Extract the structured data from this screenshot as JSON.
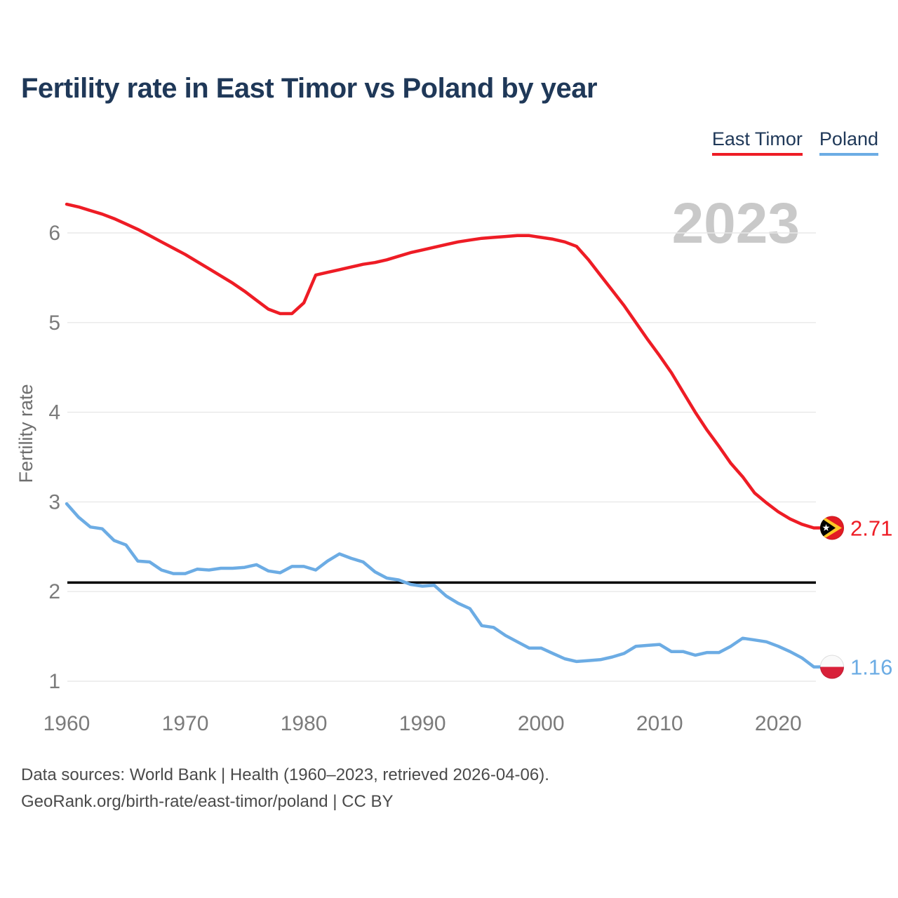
{
  "page": {
    "title": "Fertility rate in East Timor vs Poland by year",
    "footer_line1": "Data sources: World Bank | Health (1960–2023, retrieved 2026-04-06).",
    "footer_line2": "GeoRank.org/birth-rate/east-timor/poland | CC BY"
  },
  "colors": {
    "title_text": "#1F3858",
    "watermark": "#C9C9C9",
    "gridline": "#E8E8E8",
    "tick_text": "#7B7B7B",
    "axis_title": "#6E6E6E",
    "footer_text": "#4A4A4A",
    "reference_line": "#000000",
    "east_timor": "#EE1C25",
    "poland": "#6CACE4"
  },
  "chart_data": {
    "type": "line",
    "title": "Fertility rate in East Timor vs Poland by year",
    "xlabel": "",
    "ylabel": "Fertility rate",
    "watermark": "2023",
    "x_range": [
      1960,
      2023
    ],
    "x_step": 1,
    "x_ticks": [
      1960,
      1970,
      1980,
      1990,
      2000,
      2010,
      2020
    ],
    "y_ticks": [
      1,
      2,
      3,
      4,
      5,
      6
    ],
    "grid": "horizontal-only",
    "legend_position": "top-right",
    "reference_line": {
      "value": 2.1,
      "color": "#000000"
    },
    "series": [
      {
        "name": "East Timor",
        "color": "#EE1C25",
        "end_label": "2.71",
        "end_value": 2.71,
        "flag": {
          "type": "east-timor",
          "colors": [
            "#E21B23",
            "#FFC726",
            "#000000",
            "#FFFFFF"
          ]
        },
        "values": [
          6.32,
          6.29,
          6.25,
          6.21,
          6.16,
          6.1,
          6.04,
          5.97,
          5.9,
          5.83,
          5.76,
          5.68,
          5.6,
          5.52,
          5.44,
          5.35,
          5.25,
          5.15,
          5.1,
          5.1,
          5.22,
          5.53,
          5.56,
          5.59,
          5.62,
          5.65,
          5.67,
          5.7,
          5.74,
          5.78,
          5.81,
          5.84,
          5.87,
          5.9,
          5.92,
          5.94,
          5.95,
          5.96,
          5.97,
          5.97,
          5.95,
          5.93,
          5.9,
          5.85,
          5.7,
          5.53,
          5.36,
          5.19,
          5.0,
          4.81,
          4.63,
          4.44,
          4.22,
          4.0,
          3.8,
          3.62,
          3.43,
          3.28,
          3.1,
          2.99,
          2.89,
          2.81,
          2.75,
          2.71
        ]
      },
      {
        "name": "Poland",
        "color": "#6CACE4",
        "end_label": "1.16",
        "end_value": 1.16,
        "flag": {
          "type": "poland",
          "colors": [
            "#FAFAFA",
            "#D82039"
          ]
        },
        "values": [
          2.98,
          2.83,
          2.72,
          2.7,
          2.57,
          2.52,
          2.34,
          2.33,
          2.24,
          2.2,
          2.2,
          2.25,
          2.24,
          2.26,
          2.26,
          2.27,
          2.3,
          2.23,
          2.21,
          2.28,
          2.28,
          2.24,
          2.34,
          2.42,
          2.37,
          2.33,
          2.22,
          2.15,
          2.13,
          2.08,
          2.06,
          2.07,
          1.95,
          1.87,
          1.81,
          1.62,
          1.6,
          1.51,
          1.44,
          1.37,
          1.37,
          1.31,
          1.25,
          1.22,
          1.23,
          1.24,
          1.27,
          1.31,
          1.39,
          1.4,
          1.41,
          1.33,
          1.33,
          1.29,
          1.32,
          1.32,
          1.39,
          1.48,
          1.46,
          1.44,
          1.39,
          1.33,
          1.26,
          1.16
        ]
      }
    ]
  }
}
